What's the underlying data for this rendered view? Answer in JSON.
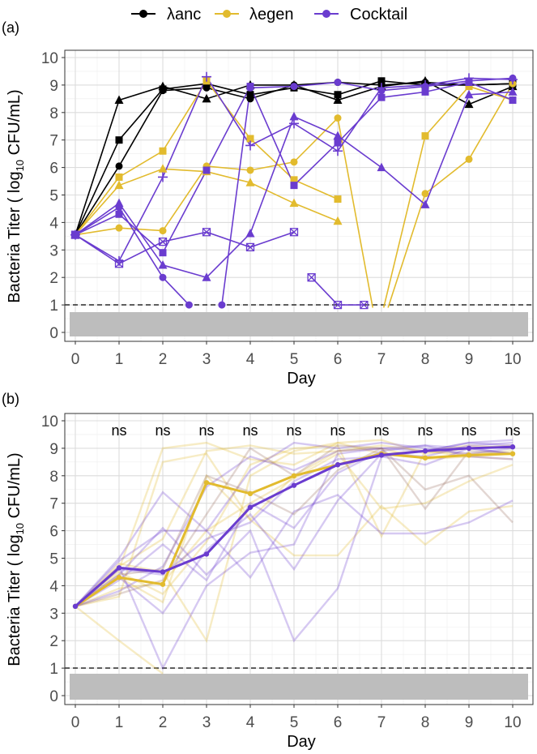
{
  "chart_data": [
    {
      "panel_label": "(a)",
      "type": "line",
      "xlabel": "Day",
      "ylabel": "Bacteria Titer ( log",
      "ylabel_sub": "10",
      "ylabel_unit": " CFU/mL)",
      "xlim": [
        0,
        10
      ],
      "ylim": [
        0,
        10
      ],
      "x_ticks": [
        0,
        1,
        2,
        3,
        4,
        5,
        6,
        7,
        8,
        9,
        10
      ],
      "y_ticks": [
        0,
        1,
        2,
        3,
        4,
        5,
        6,
        7,
        8,
        9,
        10
      ],
      "limit_of_detection": 1,
      "legend": [
        {
          "label": "λanc",
          "color": "#000000"
        },
        {
          "label": "λegen",
          "color": "#e2bb2e"
        },
        {
          "label": "Cocktail",
          "color": "#6a3ccf"
        }
      ],
      "series": [
        {
          "group": "λanc",
          "color": "#000000",
          "marker": "triangle",
          "x": [
            0,
            1,
            2,
            3,
            4,
            5,
            6,
            7,
            8,
            9,
            10
          ],
          "y": [
            3.55,
            8.45,
            8.95,
            8.5,
            9.0,
            9.0,
            8.45,
            8.95,
            9.15,
            8.3,
            8.95
          ]
        },
        {
          "group": "λanc",
          "color": "#000000",
          "marker": "square",
          "x": [
            0,
            1,
            2,
            3,
            4,
            5,
            6,
            7,
            8,
            9,
            10
          ],
          "y": [
            3.55,
            7.0,
            8.85,
            9.05,
            8.65,
            8.9,
            8.65,
            9.15,
            9.0,
            9.0,
            9.05
          ]
        },
        {
          "group": "λanc",
          "color": "#000000",
          "marker": "circle",
          "x": [
            0,
            1,
            2,
            3,
            4,
            5,
            6,
            7,
            8,
            9,
            10
          ],
          "y": [
            3.55,
            6.05,
            8.8,
            8.9,
            8.5,
            9.0,
            9.1,
            9.0,
            9.1,
            9.0,
            9.05
          ]
        },
        {
          "group": "λegen",
          "color": "#e2bb2e",
          "marker": "square",
          "x": [
            0,
            1,
            2,
            3,
            4,
            5,
            6
          ],
          "y": [
            3.55,
            5.65,
            6.6,
            9.15,
            7.05,
            5.55,
            4.85
          ]
        },
        {
          "group": "λegen",
          "color": "#e2bb2e",
          "marker": "triangle",
          "x": [
            0,
            1,
            2,
            3,
            4,
            5,
            6
          ],
          "y": [
            3.55,
            5.35,
            5.95,
            5.85,
            5.45,
            4.7,
            4.05
          ]
        },
        {
          "group": "λegen",
          "color": "#e2bb2e",
          "marker": "circle",
          "x": [
            0,
            1,
            2,
            3,
            4,
            5,
            6,
            6.8
          ],
          "y": [
            3.55,
            3.8,
            3.7,
            6.05,
            5.9,
            6.2,
            7.8,
            0.9
          ]
        },
        {
          "group": "λegen",
          "color": "#e2bb2e",
          "marker": "circle",
          "x": [
            7.15,
            8,
            9,
            10
          ],
          "y": [
            0.9,
            5.05,
            6.3,
            9.05
          ]
        },
        {
          "group": "λegen",
          "color": "#e2bb2e",
          "marker": "square",
          "x": [
            7.05,
            8,
            9,
            10
          ],
          "y": [
            0.9,
            7.15,
            8.95,
            8.45
          ]
        },
        {
          "group": "Cocktail",
          "color": "#6a3ccf",
          "marker": "circle",
          "x": [
            0,
            1,
            2,
            2.6
          ],
          "y": [
            3.55,
            4.55,
            2.0,
            1.0
          ]
        },
        {
          "group": "Cocktail",
          "color": "#6a3ccf",
          "marker": "circle",
          "x": [
            3.35,
            4,
            5,
            6,
            7,
            8,
            9,
            10
          ],
          "y": [
            1.0,
            8.9,
            8.95,
            9.1,
            8.8,
            8.95,
            9.15,
            9.25
          ]
        },
        {
          "group": "Cocktail",
          "color": "#6a3ccf",
          "marker": "square",
          "x": [
            0,
            1,
            2,
            3,
            4,
            5,
            6,
            7,
            8,
            9,
            10
          ],
          "y": [
            3.55,
            4.3,
            2.9,
            5.9,
            8.95,
            5.35,
            6.9,
            8.55,
            8.75,
            9.1,
            8.45
          ]
        },
        {
          "group": "Cocktail",
          "color": "#6a3ccf",
          "marker": "triangle",
          "x": [
            0,
            1,
            2,
            3,
            4,
            5,
            6,
            7,
            8,
            9,
            10
          ],
          "y": [
            3.55,
            4.7,
            2.45,
            2.0,
            3.6,
            7.85,
            7.15,
            6.0,
            4.65,
            8.65,
            8.75
          ]
        },
        {
          "group": "Cocktail",
          "color": "#6a3ccf",
          "marker": "plus",
          "x": [
            0,
            1,
            2,
            3,
            4,
            5,
            6,
            7,
            8,
            9,
            10
          ],
          "y": [
            3.55,
            2.6,
            5.65,
            9.3,
            6.8,
            7.6,
            6.6,
            8.9,
            9.0,
            9.25,
            9.2
          ]
        },
        {
          "group": "Cocktail",
          "color": "#6a3ccf",
          "marker": "boxcross",
          "x": [
            0,
            1,
            2,
            3,
            4,
            5
          ],
          "y": [
            3.55,
            2.5,
            3.3,
            3.65,
            3.1,
            3.65
          ]
        },
        {
          "group": "Cocktail",
          "color": "#6a3ccf",
          "marker": "boxcross",
          "x": [
            5.4,
            6,
            6.6
          ],
          "y": [
            2.0,
            1.0,
            1.0
          ]
        }
      ]
    },
    {
      "panel_label": "(b)",
      "type": "line",
      "xlabel": "Day",
      "ylabel": "Bacteria Titer ( log",
      "ylabel_sub": "10",
      "ylabel_unit": " CFU/mL)",
      "xlim": [
        0,
        10
      ],
      "ylim": [
        0,
        10
      ],
      "x_ticks": [
        0,
        1,
        2,
        3,
        4,
        5,
        6,
        7,
        8,
        9,
        10
      ],
      "y_ticks": [
        0,
        1,
        2,
        3,
        4,
        5,
        6,
        7,
        8,
        9,
        10
      ],
      "limit_of_detection": 1,
      "significance": [
        {
          "x": 1,
          "label": "ns"
        },
        {
          "x": 2,
          "label": "ns"
        },
        {
          "x": 3,
          "label": "ns"
        },
        {
          "x": 4,
          "label": "ns"
        },
        {
          "x": 5,
          "label": "ns"
        },
        {
          "x": 6,
          "label": "ns"
        },
        {
          "x": 7,
          "label": "ns"
        },
        {
          "x": 8,
          "label": "ns"
        },
        {
          "x": 9,
          "label": "ns"
        },
        {
          "x": 10,
          "label": "ns"
        }
      ],
      "series": [
        {
          "name": "λegen mean",
          "color": "#e2bb2e",
          "x": [
            0,
            1,
            2,
            3,
            4,
            5,
            6,
            7,
            8,
            9,
            10
          ],
          "y": [
            3.25,
            4.3,
            4.05,
            7.75,
            7.35,
            8.0,
            8.4,
            8.8,
            8.65,
            8.75,
            8.8
          ]
        },
        {
          "name": "Cocktail mean",
          "color": "#6a3ccf",
          "x": [
            0,
            1,
            2,
            3,
            4,
            5,
            6,
            7,
            8,
            9,
            10
          ],
          "y": [
            3.25,
            4.65,
            4.5,
            5.15,
            6.85,
            7.65,
            8.4,
            8.75,
            8.9,
            9.0,
            9.05
          ]
        }
      ],
      "replicates": [
        {
          "color": "#e2bb2e",
          "y": [
            3.25,
            4.6,
            9.0,
            9.2,
            8.6,
            8.4,
            9.2,
            8.8,
            8.9,
            8.7,
            8.6
          ]
        },
        {
          "color": "#e2bb2e",
          "y": [
            3.25,
            3.6,
            8.5,
            8.8,
            6.4,
            8.0,
            8.9,
            9.1,
            8.9,
            8.8,
            8.9
          ]
        },
        {
          "color": "#e2bb2e",
          "y": [
            3.25,
            2.0,
            0.8,
            null,
            null,
            null,
            null,
            null,
            null,
            null,
            null
          ]
        },
        {
          "color": "#e2bb2e",
          "y": [
            3.25,
            4.8,
            4.5,
            2.0,
            8.0,
            8.9,
            9.2,
            9.3,
            8.8,
            9.0,
            9.1
          ]
        },
        {
          "color": "#e2bb2e",
          "y": [
            3.25,
            4.3,
            3.4,
            8.0,
            6.4,
            5.1,
            5.1,
            6.9,
            5.5,
            6.7,
            6.9
          ]
        },
        {
          "color": "#e2bb2e",
          "y": [
            3.25,
            4.5,
            3.7,
            5.6,
            8.4,
            9.0,
            9.1,
            5.8,
            8.9,
            9.1,
            9.0
          ]
        },
        {
          "color": "#e2bb2e",
          "y": [
            3.25,
            3.9,
            4.1,
            6.0,
            7.0,
            7.9,
            8.8,
            6.8,
            7.0,
            7.8,
            8.4
          ]
        },
        {
          "color": "#e2bb2e",
          "y": [
            3.25,
            4.7,
            5.7,
            8.9,
            9.1,
            8.8,
            8.9,
            9.0,
            8.6,
            8.7,
            8.8
          ]
        },
        {
          "color": "#6a3ccf",
          "y": [
            3.25,
            4.7,
            1.0,
            4.0,
            5.2,
            5.5,
            8.8,
            9.0,
            8.9,
            9.2,
            9.3
          ]
        },
        {
          "color": "#6a3ccf",
          "y": [
            3.25,
            4.4,
            6.1,
            4.4,
            6.0,
            2.0,
            3.9,
            8.7,
            8.9,
            9.2,
            9.1
          ]
        },
        {
          "color": "#6a3ccf",
          "y": [
            3.25,
            5.0,
            7.4,
            6.0,
            4.3,
            6.7,
            7.3,
            5.9,
            5.9,
            6.3,
            7.1
          ]
        },
        {
          "color": "#6a3ccf",
          "y": [
            3.25,
            4.2,
            5.5,
            4.2,
            7.0,
            6.1,
            8.1,
            8.9,
            9.1,
            9.0,
            8.8
          ]
        },
        {
          "color": "#6a3ccf",
          "y": [
            3.25,
            4.9,
            6.0,
            6.0,
            8.2,
            9.2,
            9.0,
            9.2,
            9.0,
            8.8,
            9.0
          ]
        },
        {
          "color": "#6a3ccf",
          "y": [
            3.25,
            4.3,
            3.0,
            5.3,
            6.6,
            4.6,
            7.1,
            8.8,
            8.7,
            9.1,
            9.2
          ]
        },
        {
          "color": "#6a3ccf",
          "y": [
            3.25,
            3.8,
            4.7,
            7.6,
            8.7,
            8.2,
            8.9,
            9.0,
            9.1,
            8.7,
            8.6
          ]
        },
        {
          "color": "#6a3ccf",
          "y": [
            3.25,
            4.6,
            4.4,
            5.7,
            6.3,
            7.8,
            8.6,
            8.7,
            8.4,
            9.0,
            8.8
          ]
        },
        {
          "color": "#9a7060",
          "y": [
            3.25,
            3.7,
            4.2,
            6.6,
            9.0,
            8.0,
            9.1,
            9.0,
            7.5,
            8.0,
            6.3
          ]
        },
        {
          "color": "#9a7060",
          "y": [
            3.25,
            4.4,
            4.6,
            8.0,
            7.4,
            6.6,
            8.2,
            9.0,
            6.8,
            8.9,
            8.8
          ]
        }
      ]
    }
  ]
}
